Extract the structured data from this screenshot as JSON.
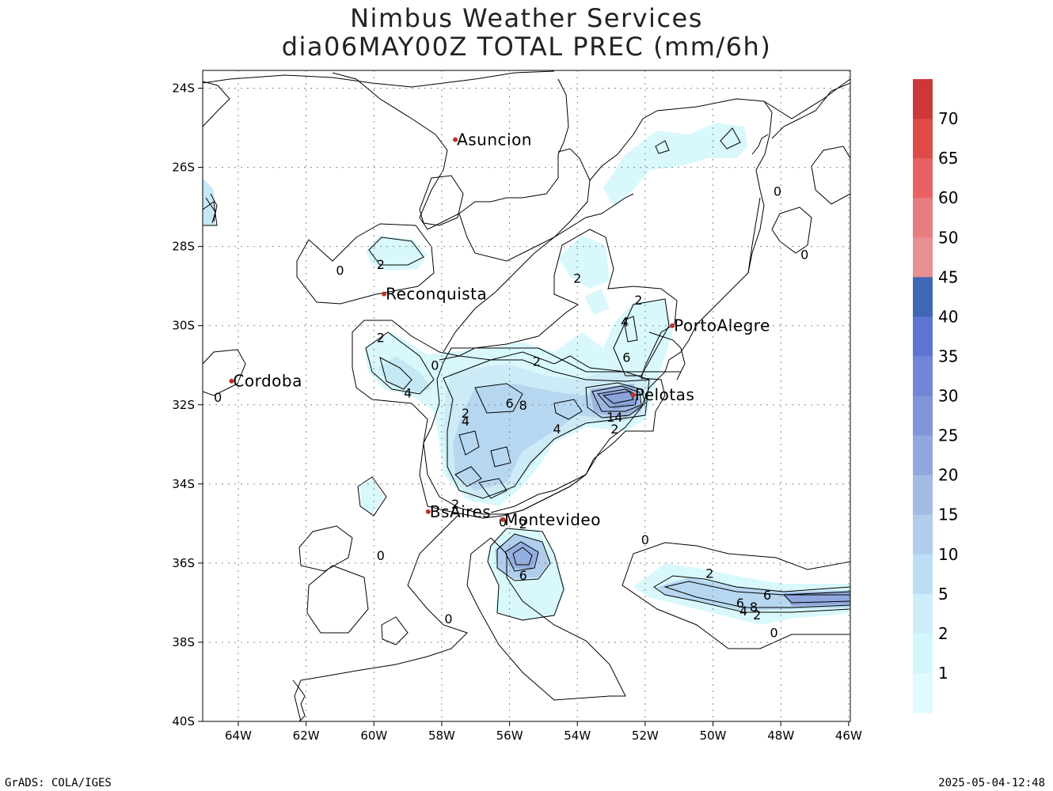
{
  "title_line1": "Nimbus Weather Services",
  "title_line2": "dia06MAY00Z TOTAL PREC (mm/6h)",
  "footer_left": "GrADS: COLA/IGES",
  "footer_right": "2025-05-04-12:48",
  "lat_ticks": [
    "24S",
    "26S",
    "28S",
    "30S",
    "32S",
    "34S",
    "36S",
    "38S",
    "40S"
  ],
  "lon_ticks": [
    "64W",
    "62W",
    "60W",
    "58W",
    "56W",
    "54W",
    "52W",
    "50W",
    "48W",
    "46W"
  ],
  "cities": [
    {
      "name": "Asuncion",
      "lon": -57.6,
      "lat": -25.3
    },
    {
      "name": "Reconquista",
      "lon": -59.7,
      "lat": -29.2
    },
    {
      "name": "PortoAlegre",
      "lon": -51.2,
      "lat": -30.0
    },
    {
      "name": "Cordoba",
      "lon": -64.2,
      "lat": -31.4
    },
    {
      "name": "Pelotas",
      "lon": -52.35,
      "lat": -31.75
    },
    {
      "name": "BsAires",
      "lon": -58.4,
      "lat": -34.7
    },
    {
      "name": "Montevideo",
      "lon": -56.2,
      "lat": -34.9
    }
  ],
  "colorbar": {
    "levels": [
      "1",
      "2",
      "5",
      "10",
      "15",
      "20",
      "25",
      "30",
      "35",
      "40",
      "45",
      "50",
      "60",
      "65",
      "70"
    ],
    "colors": [
      "#e0faff",
      "#d1f7fc",
      "#cdeef9",
      "#bcdef5",
      "#b0cdec",
      "#a1bbe5",
      "#91a8df",
      "#8196da",
      "#7186d7",
      "#5f75d1",
      "#3f67b6",
      "#e69093",
      "#e77d7e",
      "#e96263",
      "#dd4a48",
      "#cc3838",
      "#b52a28"
    ]
  },
  "contour_labels": [
    {
      "v": "0",
      "lon": -61.0,
      "lat": -28.6
    },
    {
      "v": "2",
      "lon": -59.8,
      "lat": -28.45
    },
    {
      "v": "2",
      "lon": -54.0,
      "lat": -28.8
    },
    {
      "v": "2",
      "lon": -52.2,
      "lat": -29.35
    },
    {
      "v": "4",
      "lon": -52.6,
      "lat": -29.9
    },
    {
      "v": "0",
      "lon": -48.1,
      "lat": -26.6
    },
    {
      "v": "0",
      "lon": -47.3,
      "lat": -28.2
    },
    {
      "v": "2",
      "lon": -59.8,
      "lat": -30.3
    },
    {
      "v": "0",
      "lon": -58.2,
      "lat": -31.0
    },
    {
      "v": "4",
      "lon": -59.0,
      "lat": -31.7
    },
    {
      "v": "0",
      "lon": -64.6,
      "lat": -31.8
    },
    {
      "v": "2",
      "lon": -55.2,
      "lat": -30.9
    },
    {
      "v": "6",
      "lon": -52.55,
      "lat": -30.8
    },
    {
      "v": "6",
      "lon": -56.0,
      "lat": -31.95
    },
    {
      "v": "8",
      "lon": -55.6,
      "lat": -32.0
    },
    {
      "v": "2",
      "lon": -57.3,
      "lat": -32.2
    },
    {
      "v": "4",
      "lon": -57.3,
      "lat": -32.4
    },
    {
      "v": "4",
      "lon": -54.6,
      "lat": -32.6
    },
    {
      "v": "14",
      "lon": -52.9,
      "lat": -32.3
    },
    {
      "v": "2",
      "lon": -52.9,
      "lat": -32.6
    },
    {
      "v": "2",
      "lon": -57.6,
      "lat": -34.5
    },
    {
      "v": "0",
      "lon": -56.2,
      "lat": -34.95
    },
    {
      "v": "2",
      "lon": -55.6,
      "lat": -35.0
    },
    {
      "v": "0",
      "lon": -59.8,
      "lat": -35.8
    },
    {
      "v": "0",
      "lon": -52.0,
      "lat": -35.4
    },
    {
      "v": "6",
      "lon": -55.6,
      "lat": -36.3
    },
    {
      "v": "0",
      "lon": -57.8,
      "lat": -37.4
    },
    {
      "v": "2",
      "lon": -50.1,
      "lat": -36.25
    },
    {
      "v": "6",
      "lon": -48.4,
      "lat": -36.8
    },
    {
      "v": "6",
      "lon": -49.2,
      "lat": -37.0
    },
    {
      "v": "8",
      "lon": -48.8,
      "lat": -37.1
    },
    {
      "v": "4",
      "lon": -49.1,
      "lat": -37.2
    },
    {
      "v": "2",
      "lon": -48.7,
      "lat": -37.3
    },
    {
      "v": "0",
      "lon": -48.2,
      "lat": -37.75
    }
  ]
}
